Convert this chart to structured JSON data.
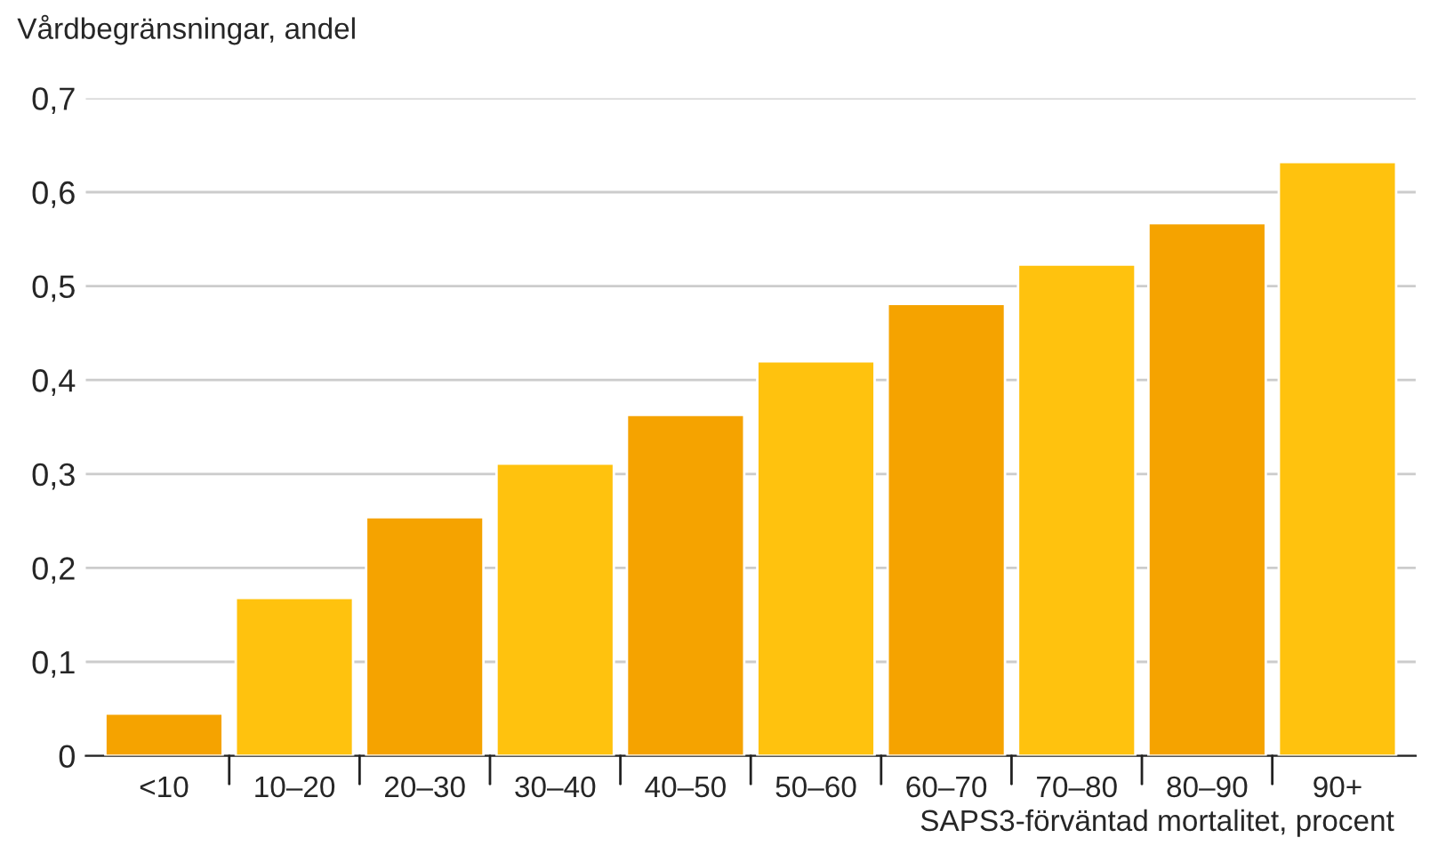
{
  "chart_data": {
    "type": "bar",
    "ylabel": "Vårdbegränsningar, andel",
    "xlabel": "SAPS3-förväntad mortalitet, procent",
    "categories": [
      "<10",
      "10–20",
      "20–30",
      "30–40",
      "40–50",
      "50–60",
      "60–70",
      "70–80",
      "80–90",
      "90+"
    ],
    "values": [
      0.045,
      0.168,
      0.254,
      0.311,
      0.363,
      0.42,
      0.481,
      0.523,
      0.567,
      0.632
    ],
    "colors": [
      "#f5a300",
      "#ffc20e",
      "#f5a300",
      "#ffc20e",
      "#f5a300",
      "#ffc20e",
      "#f5a300",
      "#ffc20e",
      "#f5a300",
      "#ffc20e"
    ],
    "ylim": [
      0,
      0.7
    ],
    "yticks": [
      0,
      {
        "value": 0.1,
        "label": "0,1"
      },
      {
        "value": 0.2,
        "label": "0,2"
      },
      {
        "value": 0.3,
        "label": "0,3"
      },
      {
        "value": 0.4,
        "label": "0,4"
      },
      {
        "value": 0.5,
        "label": "0,5"
      },
      {
        "value": 0.6,
        "label": "0,6"
      },
      {
        "value": 0.7,
        "label": "0,7"
      }
    ],
    "grid": "y"
  }
}
